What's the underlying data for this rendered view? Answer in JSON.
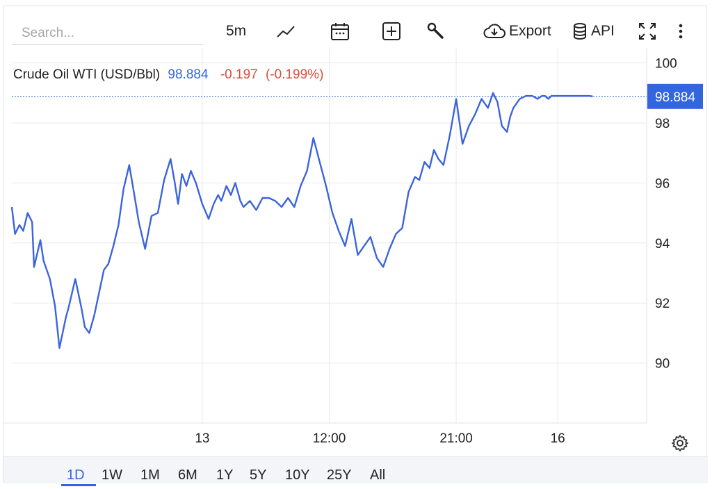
{
  "toolbar": {
    "search_placeholder": "Search...",
    "interval": "5m",
    "export_label": "Export",
    "api_label": "API",
    "icons": [
      "line-chart-icon",
      "calendar-icon",
      "plus-box-icon",
      "wrench-icon",
      "cloud-download-icon",
      "database-icon",
      "fullscreen-icon",
      "more-vertical-icon"
    ]
  },
  "legend": {
    "name": "Crude Oil WTI (USD/Bbl)",
    "price": "98.884",
    "change": "-0.197",
    "change_pct": "(-0.199%)"
  },
  "colors": {
    "line": "#3b63dd",
    "negative": "#dd4b39",
    "price_tag": "#3366dd",
    "grid": "#e8e8e8"
  },
  "chart_data": {
    "type": "line",
    "title": "Crude Oil WTI (USD/Bbl)",
    "last_price": 98.884,
    "last_price_label": "98.884",
    "y_ticks": [
      "100",
      "98",
      "96",
      "94",
      "92",
      "90"
    ],
    "y_tick_values": [
      100,
      98,
      96,
      94,
      92,
      90
    ],
    "x_ticks": [
      "13",
      "12:00",
      "21:00",
      "16"
    ],
    "x_tick_positions": [
      0.3,
      0.5,
      0.7,
      0.86
    ],
    "ylim": [
      88,
      100.5
    ],
    "grid": true,
    "series": [
      {
        "x": [
          0,
          0.005,
          0.012,
          0.018,
          0.025,
          0.032,
          0.035,
          0.045,
          0.05,
          0.06,
          0.068,
          0.075,
          0.085,
          0.09,
          0.1,
          0.105,
          0.11,
          0.115,
          0.122,
          0.13,
          0.138,
          0.145,
          0.152,
          0.16,
          0.168,
          0.176,
          0.185,
          0.193,
          0.2,
          0.21,
          0.22,
          0.23,
          0.24,
          0.25,
          0.256,
          0.262,
          0.268,
          0.275,
          0.282,
          0.29,
          0.3,
          0.31,
          0.318,
          0.325,
          0.33,
          0.338,
          0.345,
          0.352,
          0.36,
          0.365,
          0.375,
          0.385,
          0.395,
          0.405,
          0.415,
          0.425,
          0.435,
          0.445,
          0.455,
          0.465,
          0.475,
          0.485,
          0.495,
          0.505,
          0.515,
          0.525,
          0.535,
          0.545,
          0.555,
          0.565,
          0.575,
          0.585,
          0.595,
          0.605,
          0.615,
          0.625,
          0.635,
          0.642,
          0.65,
          0.658,
          0.665,
          0.672,
          0.68,
          0.69,
          0.7,
          0.71,
          0.72,
          0.73,
          0.74,
          0.75,
          0.758,
          0.765,
          0.772,
          0.78,
          0.785,
          0.79,
          0.8,
          0.81,
          0.82,
          0.828,
          0.835,
          0.84,
          0.845,
          0.85,
          0.855,
          0.86,
          0.868,
          0.875,
          0.882,
          0.89,
          0.896,
          0.9,
          0.905,
          0.91,
          0.915
        ],
        "values": [
          95.2,
          94.3,
          94.6,
          94.4,
          95.0,
          94.7,
          93.2,
          94.1,
          93.4,
          92.8,
          91.9,
          90.5,
          91.5,
          91.9,
          92.8,
          92.3,
          91.8,
          91.2,
          91.0,
          91.6,
          92.4,
          93.1,
          93.3,
          93.9,
          94.6,
          95.8,
          96.6,
          95.6,
          94.7,
          93.8,
          94.9,
          95.0,
          96.1,
          96.8,
          96.1,
          95.3,
          96.3,
          95.9,
          96.4,
          96.0,
          95.3,
          94.8,
          95.3,
          95.6,
          95.4,
          95.9,
          95.6,
          96.0,
          95.4,
          95.2,
          95.4,
          95.1,
          95.5,
          95.5,
          95.4,
          95.2,
          95.5,
          95.2,
          95.9,
          96.4,
          97.5,
          96.7,
          95.9,
          95.0,
          94.4,
          93.9,
          94.8,
          93.6,
          93.9,
          94.2,
          93.5,
          93.2,
          93.8,
          94.3,
          94.5,
          95.7,
          96.2,
          96.1,
          96.7,
          96.5,
          97.1,
          96.8,
          96.6,
          97.6,
          98.8,
          97.3,
          97.9,
          98.3,
          98.8,
          98.5,
          99.0,
          98.7,
          97.9,
          97.7,
          98.2,
          98.5,
          98.8,
          98.9,
          98.9,
          98.8,
          98.9,
          98.9,
          98.8,
          98.9,
          98.9,
          98.9,
          98.9,
          98.9,
          98.9,
          98.9,
          98.9,
          98.9,
          98.9,
          98.9,
          98.884
        ]
      }
    ]
  },
  "periods": [
    "1D",
    "1W",
    "1M",
    "6M",
    "1Y",
    "5Y",
    "10Y",
    "25Y",
    "All"
  ],
  "active_period": "1D"
}
